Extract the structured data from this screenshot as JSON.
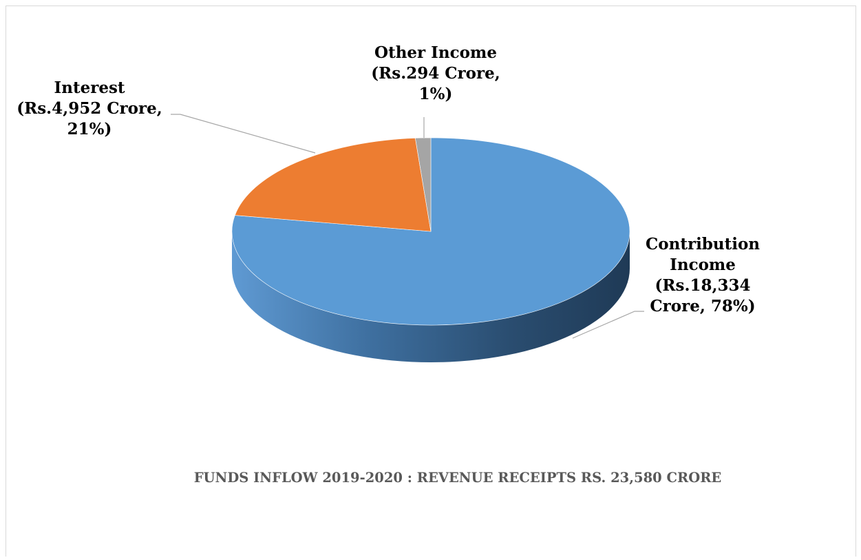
{
  "chart_data": {
    "type": "pie",
    "title": "FUNDS INFLOW 2019-2020 : REVENUE RECEIPTS RS. 23,580 CRORE",
    "slices": [
      {
        "name": "Contribution Income",
        "value": 18334,
        "percent": 78,
        "color": "#5b9bd5",
        "label": [
          "Contribution",
          "Income",
          "(Rs.18,334",
          "Crore, 78%)"
        ]
      },
      {
        "name": "Interest",
        "value": 4952,
        "percent": 21,
        "color": "#ed7d31",
        "label": [
          "Interest",
          "(Rs.4,952 Crore,",
          "21%)"
        ]
      },
      {
        "name": "Other Income",
        "value": 294,
        "percent": 1,
        "color": "#a5a5a5",
        "label": [
          "Other Income",
          "(Rs.294 Crore,",
          "1%)"
        ]
      }
    ],
    "style": "3d-pie",
    "legend": "none"
  }
}
